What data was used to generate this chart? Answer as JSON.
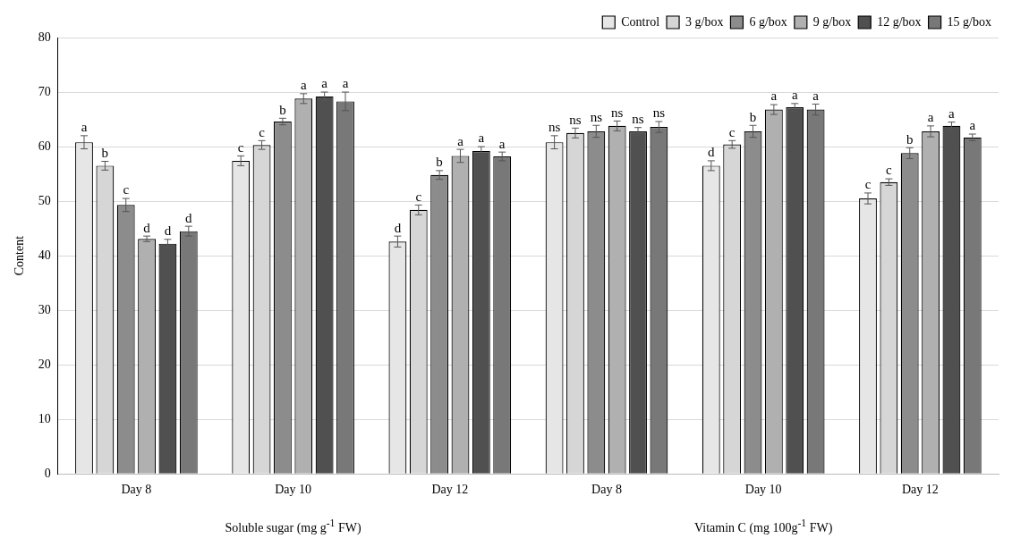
{
  "chart_data": {
    "type": "bar",
    "ylabel": "Content",
    "categories": [
      "Day 8",
      "Day 10",
      "Day 12",
      "Day 8",
      "Day 10",
      "Day 12"
    ],
    "series": [
      {
        "name": "Control",
        "color": "#e6e6e6",
        "values": [
          60.8,
          57.4,
          42.6,
          60.8,
          56.5,
          50.5
        ],
        "errors": [
          1.2,
          0.9,
          1.0,
          1.2,
          0.9,
          1.0
        ],
        "value_labels": [
          "a",
          "c",
          "d",
          "ns",
          "d",
          "c"
        ]
      },
      {
        "name": "3 g/box",
        "color": "#d6d6d6",
        "values": [
          56.5,
          60.3,
          48.4,
          62.5,
          60.4,
          53.5
        ],
        "errors": [
          0.8,
          0.8,
          0.9,
          0.9,
          0.7,
          0.6
        ],
        "value_labels": [
          "b",
          "c",
          "c",
          "ns",
          "c",
          "c"
        ]
      },
      {
        "name": "6 g/box",
        "color": "#8c8c8c",
        "values": [
          49.3,
          64.6,
          54.8,
          62.8,
          62.8,
          58.8
        ],
        "errors": [
          1.2,
          0.6,
          0.8,
          1.1,
          1.1,
          1.0
        ],
        "value_labels": [
          "c",
          "b",
          "b",
          "ns",
          "b",
          "b"
        ]
      },
      {
        "name": "9 g/box",
        "color": "#b0b0b0",
        "values": [
          43.1,
          68.8,
          58.3,
          63.8,
          66.8,
          62.8
        ],
        "errors": [
          0.5,
          0.9,
          1.2,
          0.9,
          0.9,
          1.0
        ],
        "value_labels": [
          "d",
          "a",
          "a",
          "ns",
          "a",
          "a"
        ]
      },
      {
        "name": "12 g/box",
        "color": "#505050",
        "values": [
          42.2,
          69.2,
          59.2,
          62.8,
          67.2,
          63.8
        ],
        "errors": [
          0.8,
          0.8,
          0.8,
          0.7,
          0.7,
          0.7
        ],
        "value_labels": [
          "d",
          "a",
          "a",
          "ns",
          "a",
          "a"
        ]
      },
      {
        "name": "15 g/box",
        "color": "#787878",
        "values": [
          44.5,
          68.3,
          58.2,
          63.6,
          66.8,
          61.7
        ],
        "errors": [
          0.9,
          1.7,
          0.8,
          1.0,
          1.0,
          0.6
        ],
        "value_labels": [
          "d",
          "a",
          "a",
          "ns",
          "a",
          "a"
        ]
      }
    ],
    "ylim": [
      0,
      80
    ],
    "yticks": [
      0,
      10,
      20,
      30,
      40,
      50,
      60,
      70,
      80
    ],
    "grid": "y",
    "legend": "top right",
    "annotations": [
      "Soluble sugar  (mg g$^{-1}$ FW)",
      "Vitamin C  (mg 100g$^{-1}$ FW)"
    ]
  }
}
